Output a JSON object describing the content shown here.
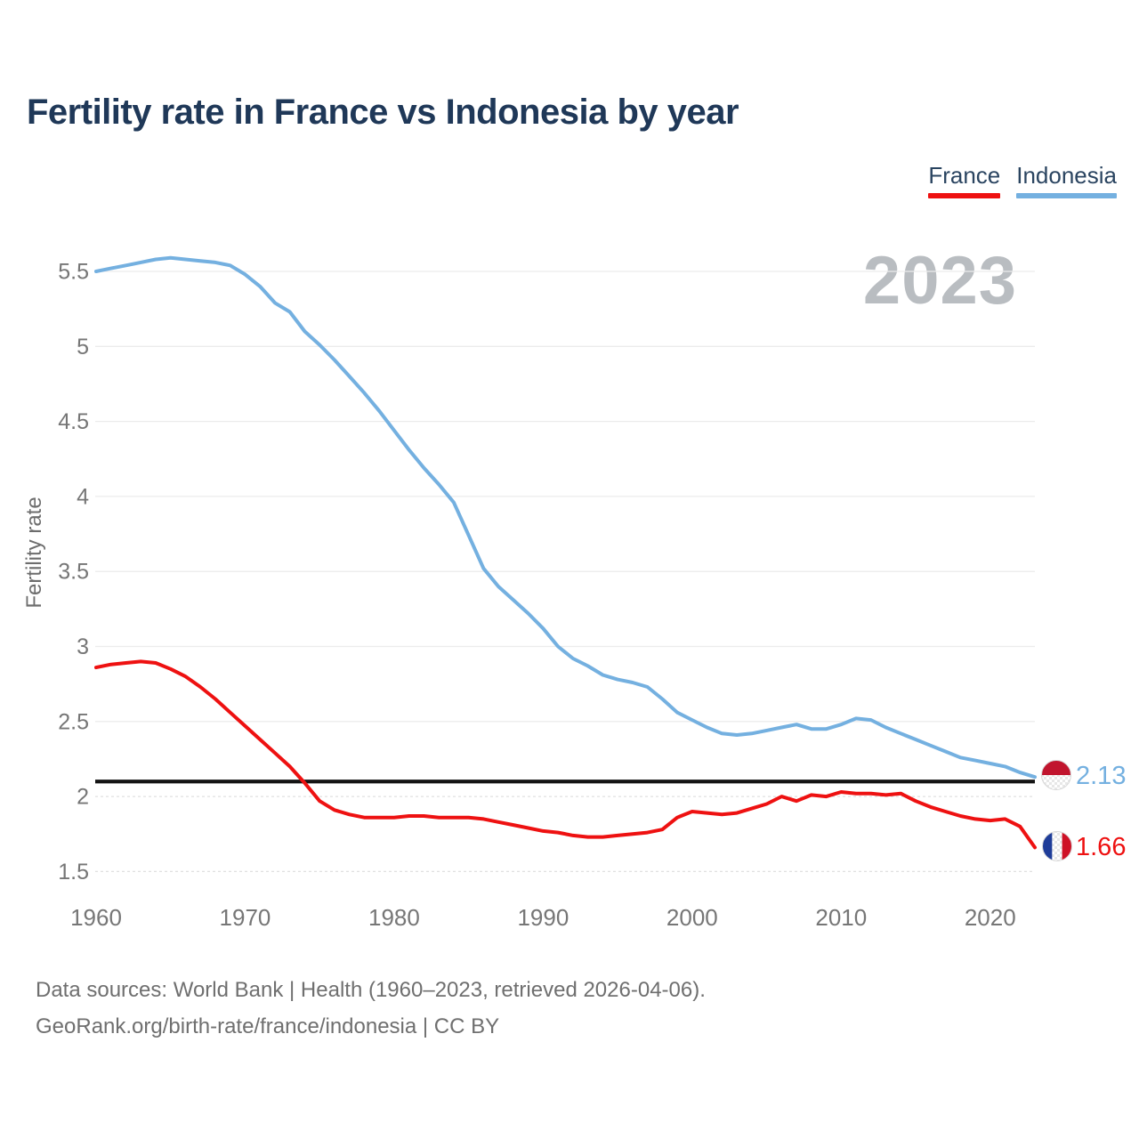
{
  "title": "Fertility rate in France vs Indonesia by year",
  "watermark": "2023",
  "legend": [
    {
      "label": "France",
      "color": "#ee1111"
    },
    {
      "label": "Indonesia",
      "color": "#74b0e0"
    }
  ],
  "end_labels": {
    "indonesia": {
      "value": "2.13",
      "text_color": "#74b0e0",
      "flag": "indonesia-flag"
    },
    "france": {
      "value": "1.66",
      "text_color": "#ee1111",
      "flag": "france-flag"
    }
  },
  "flag_colors": {
    "indonesia": {
      "top": "#c1152e",
      "bottom": "#ffffff"
    },
    "france": {
      "left": "#1f3d99",
      "middle": "#ffffff",
      "right": "#ce1126"
    }
  },
  "footer": {
    "line1": "Data sources: World Bank | Health (1960–2023, retrieved 2026-04-06).",
    "line2": "GeoRank.org/birth-rate/france/indonesia | CC BY"
  },
  "chart_data": {
    "type": "line",
    "title": "Fertility rate in France vs Indonesia by year",
    "xlabel": "",
    "ylabel": "Fertility rate",
    "xlim": [
      1960,
      2023
    ],
    "ylim": [
      1.5,
      5.5
    ],
    "x_ticks": [
      1960,
      1970,
      1980,
      1990,
      2000,
      2010,
      2020
    ],
    "y_ticks": [
      1.5,
      2,
      2.5,
      3,
      3.5,
      4,
      4.5,
      5,
      5.5
    ],
    "y_ticks_dashed": [
      1.5,
      2
    ],
    "grid": "horizontal",
    "grid_color_solid": "#ececec",
    "grid_color_dashed": "#e0e0e0",
    "axis_text_color": "#767676",
    "reference_line": {
      "value": 2.1,
      "color": "#141414"
    },
    "years": [
      1960,
      1961,
      1962,
      1963,
      1964,
      1965,
      1966,
      1967,
      1968,
      1969,
      1970,
      1971,
      1972,
      1973,
      1974,
      1975,
      1976,
      1977,
      1978,
      1979,
      1980,
      1981,
      1982,
      1983,
      1984,
      1985,
      1986,
      1987,
      1988,
      1989,
      1990,
      1991,
      1992,
      1993,
      1994,
      1995,
      1996,
      1997,
      1998,
      1999,
      2000,
      2001,
      2002,
      2003,
      2004,
      2005,
      2006,
      2007,
      2008,
      2009,
      2010,
      2011,
      2012,
      2013,
      2014,
      2015,
      2016,
      2017,
      2018,
      2019,
      2020,
      2021,
      2022,
      2023
    ],
    "series": [
      {
        "name": "Indonesia",
        "color": "#74b0e0",
        "end_value": 2.13,
        "values": [
          5.5,
          5.52,
          5.54,
          5.56,
          5.58,
          5.59,
          5.58,
          5.57,
          5.56,
          5.54,
          5.48,
          5.4,
          5.29,
          5.23,
          5.1,
          5.01,
          4.91,
          4.8,
          4.69,
          4.57,
          4.44,
          4.31,
          4.19,
          4.08,
          3.96,
          3.74,
          3.52,
          3.4,
          3.31,
          3.22,
          3.12,
          3.0,
          2.92,
          2.87,
          2.81,
          2.78,
          2.76,
          2.73,
          2.65,
          2.56,
          2.51,
          2.46,
          2.42,
          2.41,
          2.42,
          2.44,
          2.46,
          2.48,
          2.45,
          2.45,
          2.48,
          2.52,
          2.51,
          2.46,
          2.42,
          2.38,
          2.34,
          2.3,
          2.26,
          2.24,
          2.22,
          2.2,
          2.16,
          2.13
        ]
      },
      {
        "name": "France",
        "color": "#ee1111",
        "end_value": 1.66,
        "values": [
          2.86,
          2.88,
          2.89,
          2.9,
          2.89,
          2.85,
          2.8,
          2.73,
          2.65,
          2.56,
          2.47,
          2.38,
          2.29,
          2.2,
          2.09,
          1.97,
          1.91,
          1.88,
          1.86,
          1.86,
          1.86,
          1.87,
          1.87,
          1.86,
          1.86,
          1.86,
          1.85,
          1.83,
          1.81,
          1.79,
          1.77,
          1.76,
          1.74,
          1.73,
          1.73,
          1.74,
          1.75,
          1.76,
          1.78,
          1.86,
          1.9,
          1.89,
          1.88,
          1.89,
          1.92,
          1.95,
          2.0,
          1.97,
          2.01,
          2.0,
          2.03,
          2.02,
          2.02,
          2.01,
          2.02,
          1.97,
          1.93,
          1.9,
          1.87,
          1.85,
          1.84,
          1.85,
          1.8,
          1.66
        ]
      }
    ]
  }
}
